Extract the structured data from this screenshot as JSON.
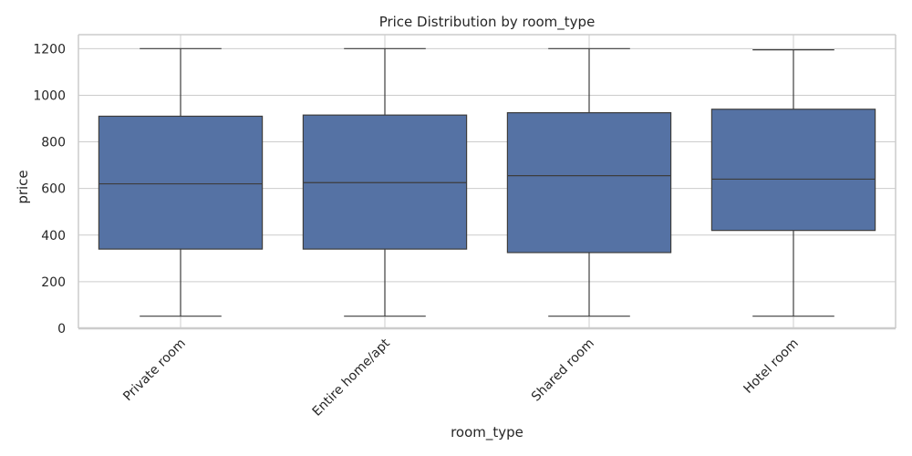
{
  "chart_data": {
    "type": "boxplot",
    "title": "Price Distribution by room_type",
    "xlabel": "room_type",
    "ylabel": "price",
    "ylim": [
      0,
      1260
    ],
    "yticks": [
      0,
      200,
      400,
      600,
      800,
      1000,
      1200
    ],
    "grid": true,
    "categories": [
      "Private room",
      "Entire home/apt",
      "Shared room",
      "Hotel room"
    ],
    "boxes": [
      {
        "category": "Private room",
        "whisker_low": 52,
        "q1": 340,
        "median": 620,
        "q3": 910,
        "whisker_high": 1200
      },
      {
        "category": "Entire home/apt",
        "whisker_low": 52,
        "q1": 340,
        "median": 625,
        "q3": 915,
        "whisker_high": 1200
      },
      {
        "category": "Shared room",
        "whisker_low": 52,
        "q1": 325,
        "median": 655,
        "q3": 925,
        "whisker_high": 1200
      },
      {
        "category": "Hotel room",
        "whisker_low": 52,
        "q1": 420,
        "median": 640,
        "q3": 940,
        "whisker_high": 1195
      }
    ],
    "colors": {
      "box_fill": "#5572a4",
      "line": "#3d3d3d",
      "grid": "#cccccc",
      "spine": "#cccccc"
    }
  }
}
